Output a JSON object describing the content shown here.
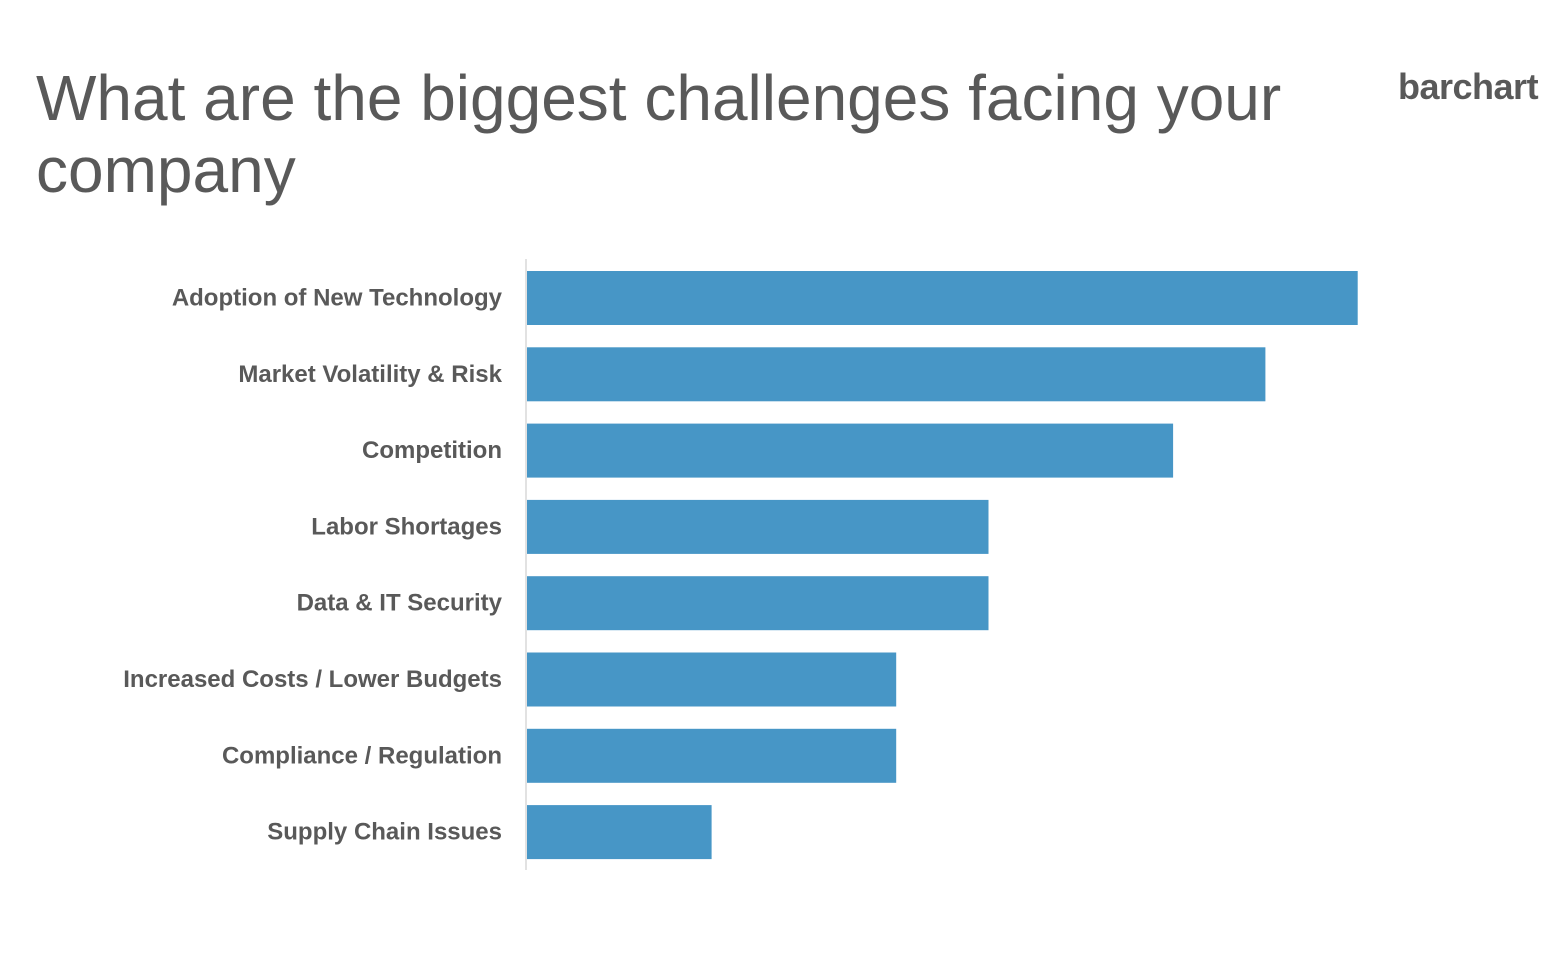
{
  "title": "What are the biggest challenges facing your company",
  "brand": "barchart",
  "colors": {
    "bar": "#4796c6",
    "text": "#595959",
    "axis": "#d9d9d9"
  },
  "chart_data": {
    "type": "bar",
    "orientation": "horizontal",
    "title": "What are the biggest challenges facing your company",
    "xlabel": "",
    "ylabel": "",
    "grid": false,
    "legend": "none",
    "categories": [
      "Adoption of New Technology",
      "Market Volatility & Risk",
      "Competition",
      "Labor Shortages",
      "Data & IT Security",
      "Increased Costs / Lower Budgets",
      "Compliance / Regulation",
      "Supply Chain Issues"
    ],
    "values": [
      9,
      8,
      7,
      5,
      5,
      4,
      4,
      2
    ],
    "xlim": [
      0,
      10
    ]
  }
}
